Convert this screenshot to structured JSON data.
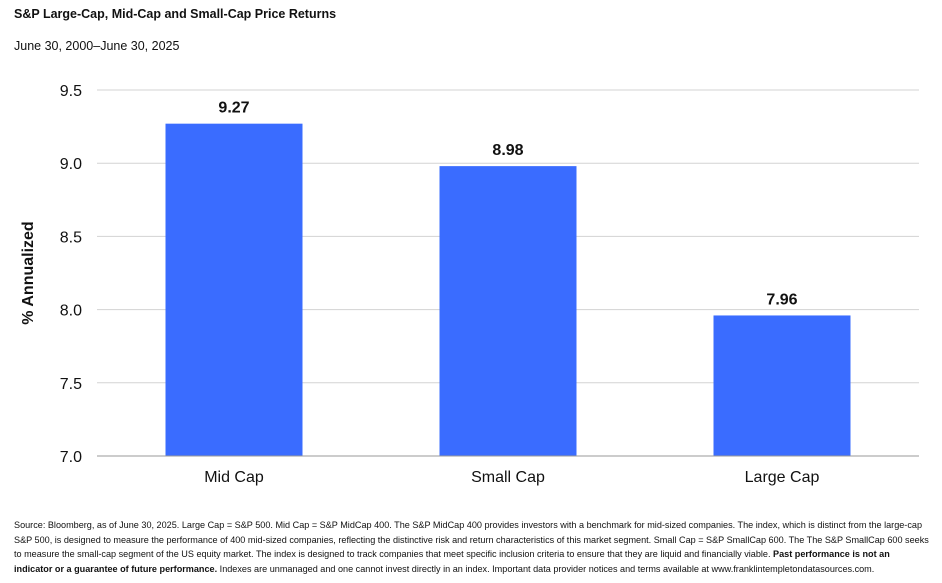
{
  "title": "S&P Large-Cap, Mid-Cap and Small-Cap Price Returns",
  "subtitle": "June 30, 2000–June 30, 2025",
  "colors": {
    "bar": "#3a6cff",
    "grid": "#d3d3d3",
    "text": "#111111"
  },
  "chart_data": {
    "type": "bar",
    "categories": [
      "Mid Cap",
      "Small Cap",
      "Large Cap"
    ],
    "values": [
      9.27,
      8.98,
      7.96
    ],
    "data_labels": [
      "9.27",
      "8.98",
      "7.96"
    ],
    "ylabel": "% Annualized",
    "ylim": [
      7.0,
      9.5
    ],
    "yticks": [
      7.0,
      7.5,
      8.0,
      8.5,
      9.0,
      9.5
    ],
    "ytick_labels": [
      "7.0",
      "7.5",
      "8.0",
      "8.5",
      "9.0",
      "9.5"
    ],
    "grid": true
  },
  "footnote": {
    "text": "Source: Bloomberg, as of June 30, 2025. Large Cap = S&P 500. Mid Cap = S&P MidCap 400. The S&P MidCap 400 provides investors with a benchmark for mid-sized companies. The index, which is distinct from the large-cap S&P 500, is designed to measure the performance of 400 mid-sized companies, reflecting the distinctive risk and return characteristics of this market segment. Small Cap = S&P SmallCap 600. The The S&P SmallCap 600 seeks to measure the small-cap segment of the US equity market. The index is designed to track companies that meet specific inclusion criteria to ensure that they are liquid and financially viable. ",
    "bold": "Past performance is not an indicator or a guarantee of future performance.",
    "tail": " Indexes are unmanaged and one cannot invest directly in an index. Important data provider notices and terms available at www.franklintempletondatasources.com."
  }
}
